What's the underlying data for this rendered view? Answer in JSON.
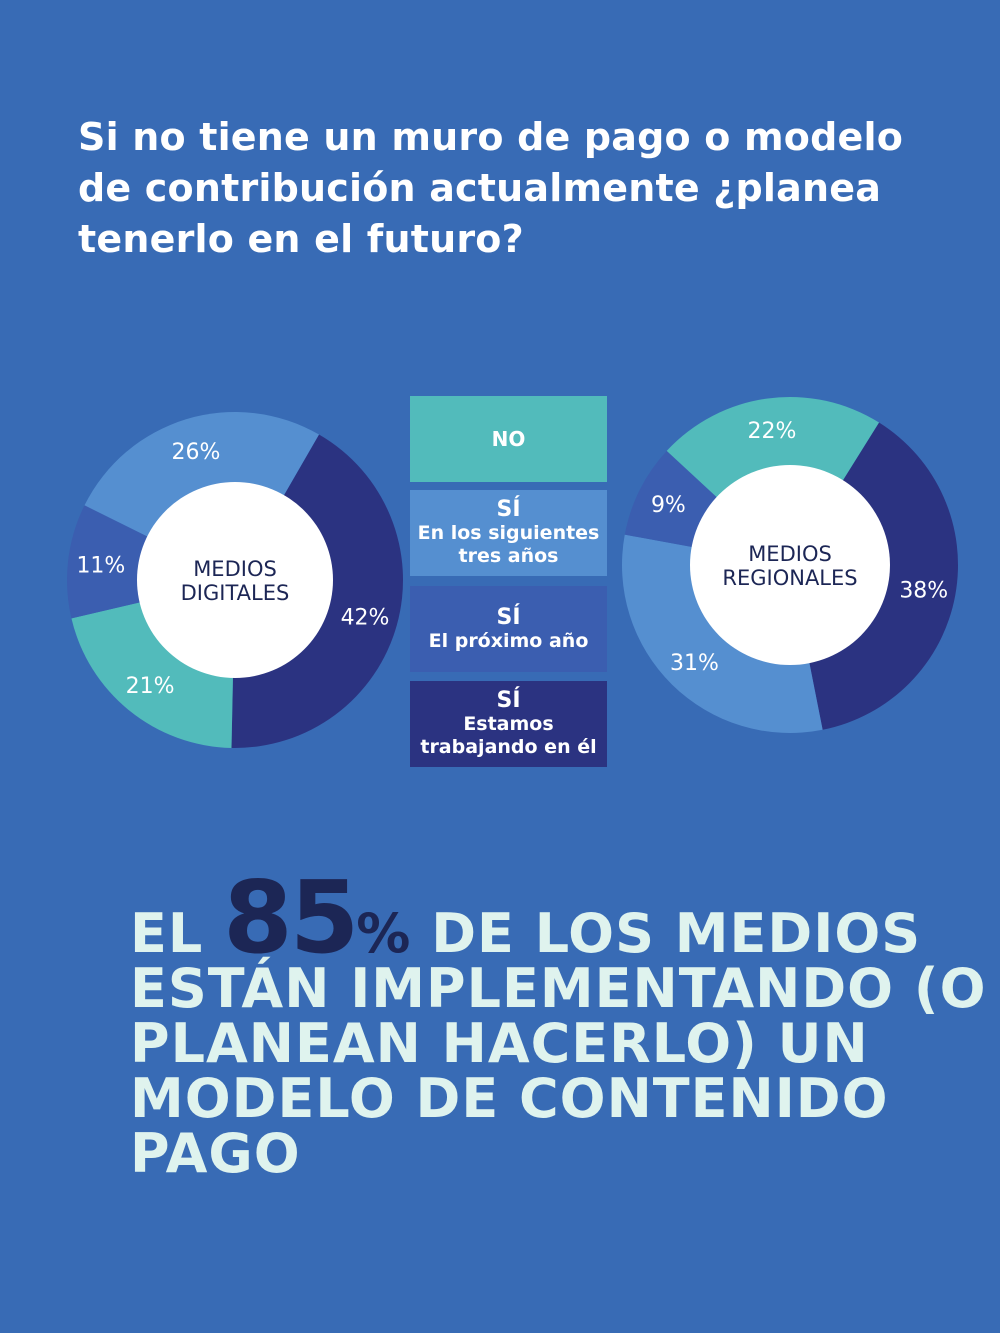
{
  "question": "Si no tiene un muro de pago o modelo de contribución actualmente ¿planea tenerlo en el futuro?",
  "colors": {
    "no": "#52bbbb",
    "si_tres_anos": "#558fd0",
    "si_proximo_ano": "#3b5eb0",
    "si_trabajando": "#2b3381",
    "background": "#386bb5"
  },
  "legend": {
    "no": "NO",
    "si": "SÍ",
    "tres_anos": "En los siguientes tres años",
    "proximo_ano": "El próximo año",
    "trabajando_1": "Estamos",
    "trabajando_2": "trabajando en él"
  },
  "chart_data": [
    {
      "type": "pie",
      "center_label": [
        "MEDIOS",
        "DIGITALES"
      ],
      "slices": [
        {
          "category": "SÍ Estamos trabajando en él",
          "value": 42,
          "label": "42%",
          "color": "#2b3381"
        },
        {
          "category": "NO",
          "value": 21,
          "label": "21%",
          "color": "#52bbbb"
        },
        {
          "category": "SÍ El próximo año",
          "value": 11,
          "label": "11%",
          "color": "#3b5eb0"
        },
        {
          "category": "SÍ En los siguientes tres años",
          "value": 26,
          "label": "26%",
          "color": "#558fd0"
        }
      ]
    },
    {
      "type": "pie",
      "center_label": [
        "MEDIOS",
        "REGIONALES"
      ],
      "slices": [
        {
          "category": "SÍ Estamos trabajando en él",
          "value": 38,
          "label": "38%",
          "color": "#2b3381"
        },
        {
          "category": "SÍ En los siguientes tres años",
          "value": 31,
          "label": "31%",
          "color": "#558fd0"
        },
        {
          "category": "SÍ El próximo año",
          "value": 9,
          "label": "9%",
          "color": "#3b5eb0"
        },
        {
          "category": "NO",
          "value": 22,
          "label": "22%",
          "color": "#52bbbb"
        }
      ]
    }
  ],
  "headline": {
    "pre": "EL ",
    "big": "85",
    "pct": "%",
    "rest": " DE LOS MEDIOS ESTÁN IMPLEMENTANDO (O PLANEAN HACERLO) UN MODELO DE CONTENIDO PAGO"
  }
}
